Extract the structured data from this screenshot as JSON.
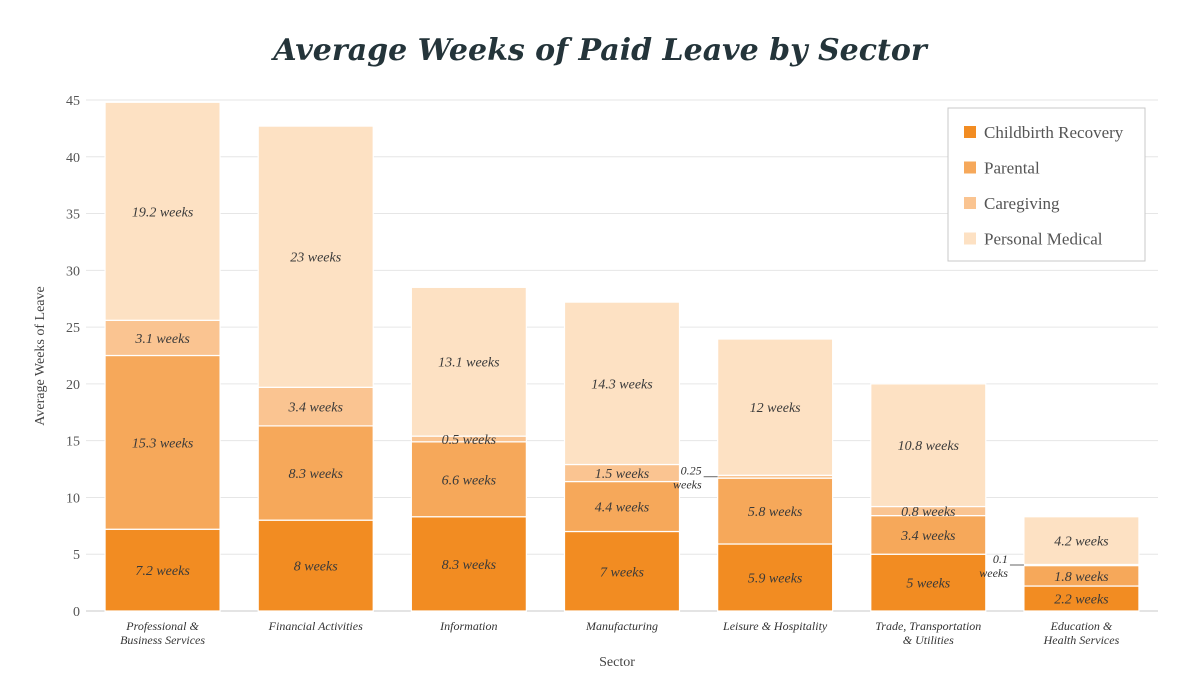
{
  "chart_data": {
    "type": "bar",
    "stacked": true,
    "title": "Average Weeks of Paid Leave by Sector",
    "xlabel": "Sector",
    "ylabel": "Average Weeks of Leave",
    "ylim": [
      0,
      45
    ],
    "yticks": [
      "0",
      "5",
      "10",
      "15",
      "20",
      "25",
      "30",
      "35",
      "40",
      "45"
    ],
    "grid": true,
    "legend_position": "top-right",
    "categories": [
      [
        "Professional &",
        "Business Services"
      ],
      [
        "Financial Activities"
      ],
      [
        "Information"
      ],
      [
        "Manufacturing"
      ],
      [
        "Leisure & Hospitality"
      ],
      [
        "Trade, Transportation",
        "& Utilities"
      ],
      [
        "Education &",
        "Health Services"
      ]
    ],
    "series": [
      {
        "name": "Childbirth Recovery",
        "color": "#f28c22",
        "values": [
          7.2,
          8,
          8.3,
          7,
          5.9,
          5,
          2.2
        ],
        "labels": [
          "7.2 weeks",
          "8 weeks",
          "8.3 weeks",
          "7 weeks",
          "5.9 weeks",
          "5 weeks",
          "2.2 weeks"
        ]
      },
      {
        "name": "Parental",
        "color": "#f6a85a",
        "values": [
          15.3,
          8.3,
          6.6,
          4.4,
          5.8,
          3.4,
          1.8
        ],
        "labels": [
          "15.3 weeks",
          "8.3 weeks",
          "6.6 weeks",
          "4.4 weeks",
          "5.8 weeks",
          "3.4 weeks",
          "1.8 weeks"
        ]
      },
      {
        "name": "Caregiving",
        "color": "#fac491",
        "values": [
          3.1,
          3.4,
          0.5,
          1.5,
          0.25,
          0.8,
          0.1
        ],
        "labels": [
          "3.1 weeks",
          "3.4 weeks",
          "0.5 weeks",
          "1.5 weeks",
          "0.25 weeks",
          "0.8 weeks",
          "0.1 weeks"
        ]
      },
      {
        "name": "Personal Medical",
        "color": "#fde1c3",
        "values": [
          19.2,
          23,
          13.1,
          14.3,
          12,
          10.8,
          4.2
        ],
        "labels": [
          "19.2 weeks",
          "23 weeks",
          "13.1 weeks",
          "14.3 weeks",
          "12 weeks",
          "10.8 weeks",
          "4.2 weeks"
        ]
      }
    ],
    "annotations": [
      {
        "category_index": 4,
        "series_index": 2,
        "lines": [
          "0.25",
          "weeks"
        ]
      },
      {
        "category_index": 6,
        "series_index": 2,
        "lines": [
          "0.1",
          "weeks"
        ]
      }
    ]
  }
}
